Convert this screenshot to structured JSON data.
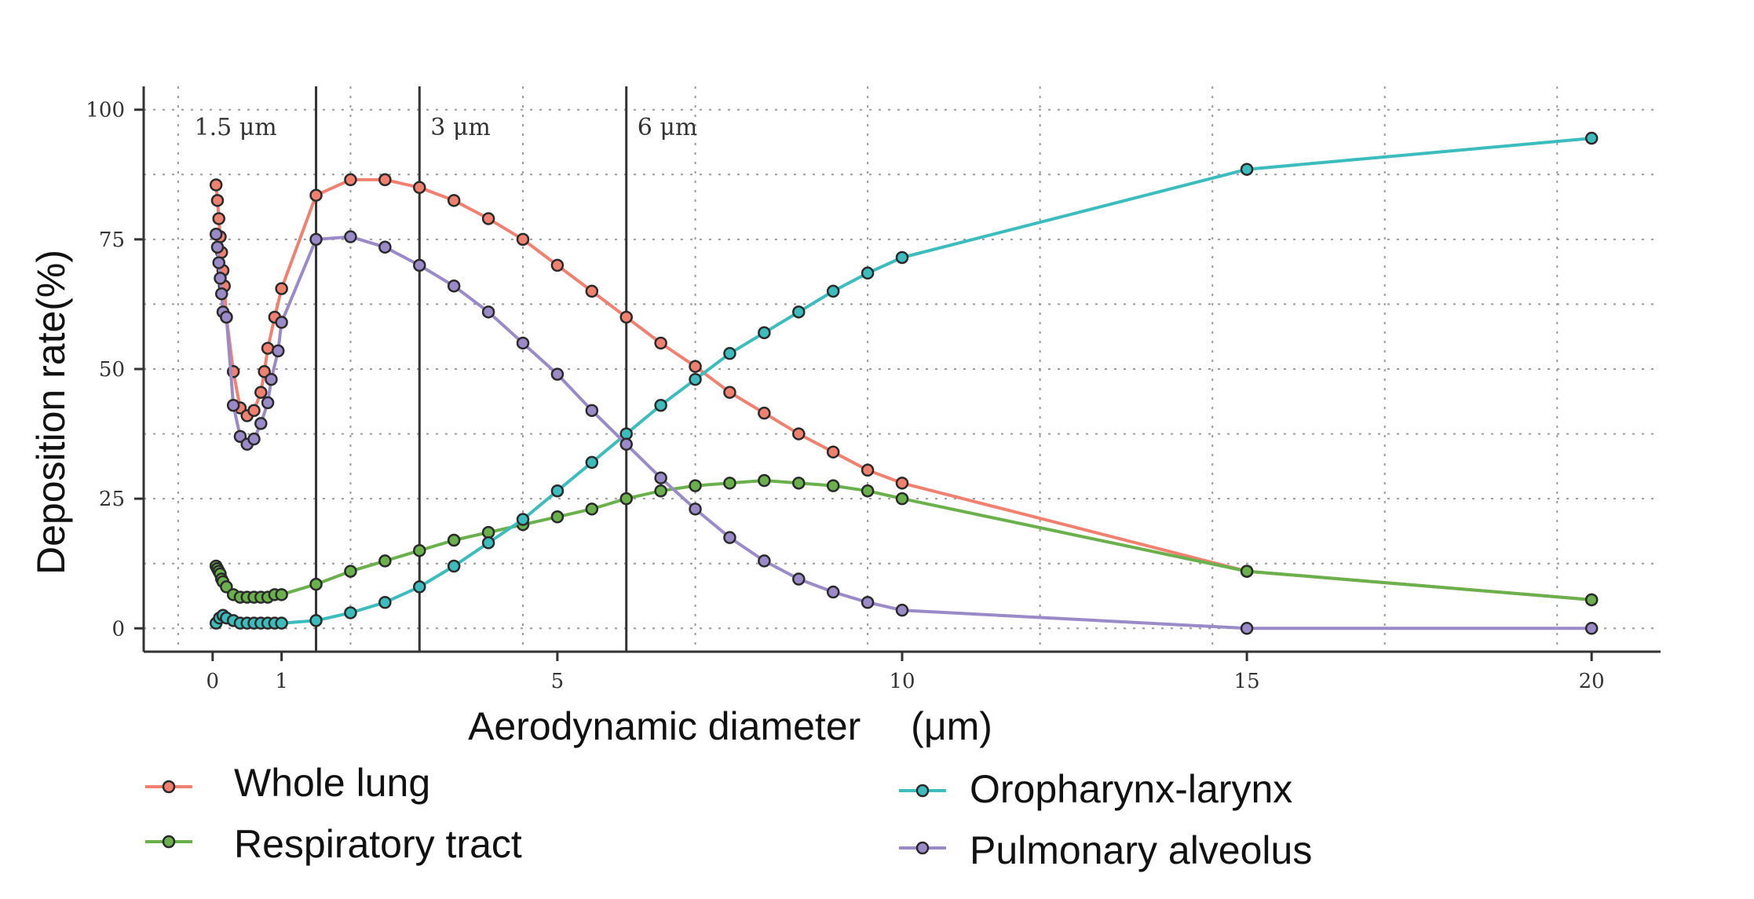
{
  "chart_data": {
    "type": "line",
    "title": "",
    "xlabel": "Aerodynamic diameter 　(μm)",
    "ylabel": "Deposition rate(%)",
    "xlim": [
      -1,
      21
    ],
    "ylim": [
      -4.5,
      104.5
    ],
    "xticks": [
      0,
      1,
      5,
      10,
      15,
      20
    ],
    "xtick_labels": [
      "0",
      "1",
      "5",
      "10",
      "15",
      "20"
    ],
    "yticks": [
      0,
      25,
      50,
      75,
      100
    ],
    "ytick_labels": [
      "0",
      "25",
      "50",
      "75",
      "100"
    ],
    "grid": true,
    "vertical_lines": [
      {
        "x": 1.5,
        "label": "1.5 μm"
      },
      {
        "x": 3,
        "label": "3 μm"
      },
      {
        "x": 6,
        "label": "6 μm"
      }
    ],
    "legend_position": "bottom",
    "series": [
      {
        "name": "Whole lung",
        "color": "#f08070",
        "points": [
          [
            0.05,
            85.5
          ],
          [
            0.07,
            82.5
          ],
          [
            0.09,
            79
          ],
          [
            0.11,
            75.5
          ],
          [
            0.13,
            72.5
          ],
          [
            0.15,
            69
          ],
          [
            0.17,
            66
          ],
          [
            0.2,
            60
          ],
          [
            0.2,
            60
          ],
          [
            0.2,
            60
          ],
          [
            0.2,
            60
          ],
          [
            0.2,
            60
          ],
          [
            0.2,
            60
          ],
          [
            0.2,
            60
          ],
          [
            0.2,
            60
          ],
          [
            0.2,
            60
          ],
          [
            0.2,
            60
          ],
          [
            0.2,
            60
          ],
          [
            0.2,
            60
          ],
          [
            0.2,
            60
          ],
          [
            0.2,
            60
          ],
          [
            0.2,
            60
          ],
          [
            0.2,
            60
          ],
          [
            0.2,
            60
          ],
          [
            0.2,
            60
          ],
          [
            0.2,
            60
          ],
          [
            0.2,
            60
          ],
          [
            0.2,
            60
          ],
          [
            0.2,
            60
          ],
          [
            0.2,
            60
          ],
          [
            0.2,
            60
          ],
          [
            0.2,
            60
          ],
          [
            0.2,
            60
          ],
          [
            0.2,
            60
          ],
          [
            0.2,
            60
          ],
          [
            0.2,
            60
          ],
          [
            0.2,
            60
          ],
          [
            0.2,
            60
          ],
          [
            0.2,
            60
          ],
          [
            0.2,
            60
          ],
          [
            0.2,
            60
          ],
          [
            0.2,
            60
          ],
          [
            0.2,
            60
          ],
          [
            0.2,
            60
          ],
          [
            0.2,
            60
          ],
          [
            0.2,
            60
          ],
          [
            0.2,
            60
          ],
          [
            0.2,
            60
          ],
          [
            0.2,
            60
          ],
          [
            0.3,
            49.5
          ],
          [
            0.4,
            42.5
          ],
          [
            0.5,
            41
          ],
          [
            0.6,
            42
          ],
          [
            0.7,
            45.5
          ],
          [
            0.75,
            49.5
          ],
          [
            0.8,
            54
          ],
          [
            0.9,
            60
          ],
          [
            1,
            65.5
          ],
          [
            1.5,
            83.5
          ],
          [
            2,
            86.5
          ],
          [
            2.5,
            86.5
          ],
          [
            3,
            85
          ],
          [
            3.5,
            82.5
          ],
          [
            4,
            79
          ],
          [
            4.5,
            75
          ],
          [
            5,
            70
          ],
          [
            5.5,
            65
          ],
          [
            6,
            60
          ],
          [
            6.5,
            55
          ],
          [
            7,
            50.5
          ],
          [
            7.5,
            45.5
          ],
          [
            8,
            41.5
          ],
          [
            8.5,
            37.5
          ],
          [
            9,
            34
          ],
          [
            9.5,
            30.5
          ],
          [
            10,
            28
          ],
          [
            15,
            11
          ],
          [
            20,
            5.5
          ]
        ]
      },
      {
        "name": "Respiratory tract",
        "color": "#6ab04c",
        "points": [
          [
            0.05,
            12
          ],
          [
            0.07,
            11.5
          ],
          [
            0.09,
            11
          ],
          [
            0.11,
            10.5
          ],
          [
            0.13,
            9.5
          ],
          [
            0.15,
            9
          ],
          [
            0.2,
            8
          ],
          [
            0.3,
            6.5
          ],
          [
            0.4,
            6
          ],
          [
            0.5,
            6
          ],
          [
            0.6,
            6
          ],
          [
            0.7,
            6
          ],
          [
            0.8,
            6
          ],
          [
            0.9,
            6.5
          ],
          [
            1,
            6.5
          ],
          [
            1.5,
            8.5
          ],
          [
            2,
            11
          ],
          [
            2.5,
            13
          ],
          [
            3,
            15
          ],
          [
            3.5,
            17
          ],
          [
            4,
            18.5
          ],
          [
            4.5,
            20
          ],
          [
            5,
            21.5
          ],
          [
            5.5,
            23
          ],
          [
            6,
            25
          ],
          [
            6.5,
            26.5
          ],
          [
            7,
            27.5
          ],
          [
            7.5,
            28
          ],
          [
            8,
            28.5
          ],
          [
            8.5,
            28
          ],
          [
            9,
            27.5
          ],
          [
            9.5,
            26.5
          ],
          [
            10,
            25
          ],
          [
            15,
            11
          ],
          [
            20,
            5.5
          ]
        ]
      },
      {
        "name": "Oropharynx-larynx",
        "color": "#3cbcbc",
        "points": [
          [
            0.05,
            1
          ],
          [
            0.1,
            2
          ],
          [
            0.15,
            2.5
          ],
          [
            0.2,
            2
          ],
          [
            0.3,
            1.5
          ],
          [
            0.4,
            1
          ],
          [
            0.5,
            1
          ],
          [
            0.6,
            1
          ],
          [
            0.7,
            1
          ],
          [
            0.8,
            1
          ],
          [
            0.9,
            1
          ],
          [
            1,
            1
          ],
          [
            1.5,
            1.5
          ],
          [
            2,
            3
          ],
          [
            2.5,
            5
          ],
          [
            3,
            8
          ],
          [
            3.5,
            12
          ],
          [
            4,
            16.5
          ],
          [
            4.5,
            21
          ],
          [
            5,
            26.5
          ],
          [
            5.5,
            32
          ],
          [
            6,
            37.5
          ],
          [
            6.5,
            43
          ],
          [
            7,
            48
          ],
          [
            7.5,
            53
          ],
          [
            8,
            57
          ],
          [
            8.5,
            61
          ],
          [
            9,
            65
          ],
          [
            9.5,
            68.5
          ],
          [
            10,
            71.5
          ],
          [
            15,
            88.5
          ],
          [
            20,
            94.5
          ]
        ]
      },
      {
        "name": "Pulmonary alveolus",
        "color": "#9a8ac8",
        "points": [
          [
            0.05,
            76
          ],
          [
            0.07,
            73.5
          ],
          [
            0.09,
            70.5
          ],
          [
            0.11,
            67.5
          ],
          [
            0.13,
            64.5
          ],
          [
            0.15,
            61
          ],
          [
            0.2,
            60
          ],
          [
            0.3,
            43
          ],
          [
            0.4,
            37
          ],
          [
            0.5,
            35.5
          ],
          [
            0.6,
            36.5
          ],
          [
            0.7,
            39.5
          ],
          [
            0.8,
            43.5
          ],
          [
            0.85,
            48
          ],
          [
            0.95,
            53.5
          ],
          [
            1,
            59
          ],
          [
            1.5,
            75
          ],
          [
            2,
            75.5
          ],
          [
            2.5,
            73.5
          ],
          [
            3,
            70
          ],
          [
            3.5,
            66
          ],
          [
            4,
            61
          ],
          [
            4.5,
            55
          ],
          [
            5,
            49
          ],
          [
            5.5,
            42
          ],
          [
            6,
            35.5
          ],
          [
            6.5,
            29
          ],
          [
            7,
            23
          ],
          [
            7.5,
            17.5
          ],
          [
            8,
            13
          ],
          [
            8.5,
            9.5
          ],
          [
            9,
            7
          ],
          [
            9.5,
            5
          ],
          [
            10,
            3.5
          ],
          [
            15,
            0
          ],
          [
            20,
            0
          ]
        ]
      }
    ]
  }
}
